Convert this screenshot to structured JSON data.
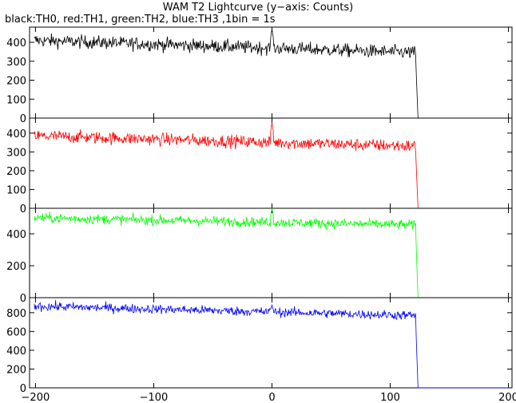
{
  "title": "WAM T2 Lightcurve (y−axis: Counts)",
  "subtitle": "black:TH0, red:TH1, green:TH2, blue:TH3 ,1bin = 1s",
  "chart_data": {
    "type": "line",
    "title": "WAM T2 Lightcurve (y−axis: Counts)",
    "subtitle": "black:TH0, red:TH1, green:TH2, blue:TH3 ,1bin = 1s",
    "xlim": [
      -205,
      203
    ],
    "x_ticks": [
      -200,
      -100,
      0,
      100,
      200
    ],
    "x_tick_labels": [
      "−200",
      "−100",
      "0",
      "100",
      "200"
    ],
    "bin_seconds": 1,
    "drop_x": 122,
    "panels": [
      {
        "name": "TH0",
        "color": "#000000",
        "ylim": [
          0,
          480
        ],
        "yticks": [
          0,
          100,
          200,
          300,
          400
        ],
        "level_start": 410,
        "level_end": 345,
        "noise": 25,
        "spike_x": 0,
        "spike_peak": 470,
        "after_drop": 0
      },
      {
        "name": "TH1",
        "color": "#ff0000",
        "ylim": [
          0,
          480
        ],
        "yticks": [
          0,
          100,
          200,
          300,
          400
        ],
        "level_start": 385,
        "level_end": 330,
        "noise": 24,
        "spike_x": 0,
        "spike_peak": 455,
        "after_drop": 0
      },
      {
        "name": "TH2",
        "color": "#00ff00",
        "ylim": [
          0,
          560
        ],
        "yticks": [
          0,
          200,
          400
        ],
        "level_start": 500,
        "level_end": 455,
        "noise": 22,
        "spike_x": 0,
        "spike_peak": 560,
        "after_drop": 0
      },
      {
        "name": "TH3",
        "color": "#0000ff",
        "ylim": [
          0,
          960
        ],
        "yticks": [
          0,
          200,
          400,
          600,
          800
        ],
        "level_start": 870,
        "level_end": 770,
        "noise": 35,
        "spike_x": 0,
        "spike_peak": 880,
        "after_drop": 0
      }
    ]
  }
}
